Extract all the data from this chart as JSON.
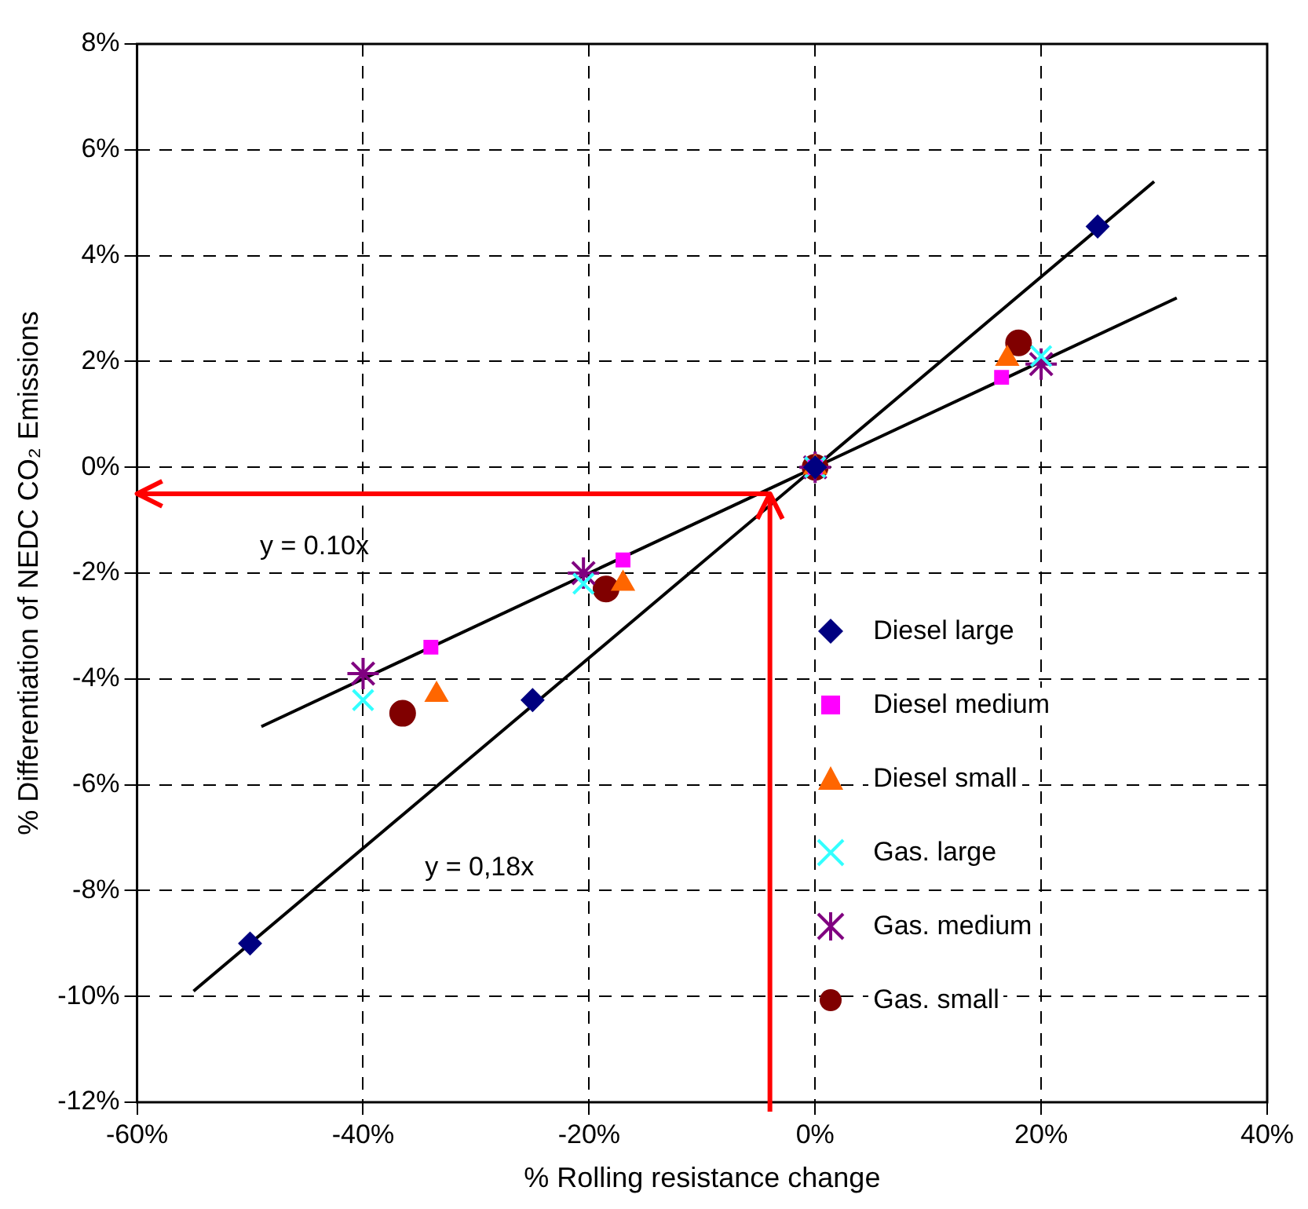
{
  "chart_data": {
    "type": "scatter",
    "xlabel": "% Rolling resistance change",
    "ylabel": "% Differentiation of NEDC CO₂ Emissions",
    "xlim": [
      -60,
      40
    ],
    "xticks": [
      {
        "value": -60,
        "label": "-60%"
      },
      {
        "value": -40,
        "label": "-40%"
      },
      {
        "value": -20,
        "label": "-20%"
      },
      {
        "value": 0,
        "label": "0%"
      },
      {
        "value": 20,
        "label": "20%"
      },
      {
        "value": 40,
        "label": "40%"
      }
    ],
    "ylim": [
      -12,
      8
    ],
    "yticks": [
      {
        "value": -12,
        "label": "-12%"
      },
      {
        "value": -10,
        "label": "-10%"
      },
      {
        "value": -8,
        "label": "-8%"
      },
      {
        "value": -6,
        "label": "-6%"
      },
      {
        "value": -4,
        "label": "-4%"
      },
      {
        "value": -2,
        "label": "-2%"
      },
      {
        "value": 0,
        "label": "0%"
      },
      {
        "value": 2,
        "label": "2%"
      },
      {
        "value": 4,
        "label": "4%"
      },
      {
        "value": 6,
        "label": "6%"
      },
      {
        "value": 8,
        "label": "8%"
      }
    ],
    "grid": true,
    "legend": "right",
    "series": [
      {
        "type": "line",
        "color": "#000000",
        "marker": "none",
        "x": [
          -55,
          30
        ],
        "values": [
          -9.9,
          5.4
        ]
      },
      {
        "type": "line",
        "color": "#000000",
        "marker": "none",
        "x": [
          -49,
          32
        ],
        "values": [
          -4.9,
          3.2
        ]
      },
      {
        "name": "Diesel large",
        "color": "#000080",
        "marker": "diamond",
        "x": [
          -50,
          -25,
          0,
          25
        ],
        "values": [
          -9.0,
          -4.4,
          0,
          4.55
        ]
      },
      {
        "name": "Diesel medium",
        "color": "#ff00ff",
        "marker": "square",
        "x": [
          -34,
          -17,
          0,
          16.5
        ],
        "values": [
          -3.4,
          -1.75,
          0,
          1.7
        ]
      },
      {
        "name": "Diesel small",
        "color": "#ff6600",
        "marker": "triangle",
        "x": [
          -33.5,
          -17,
          0,
          17
        ],
        "values": [
          -4.3,
          -2.2,
          0,
          2.05
        ]
      },
      {
        "name": "Gas. large",
        "color": "#33ffff",
        "marker": "cross",
        "x": [
          -40,
          -20.5,
          0,
          20
        ],
        "values": [
          -4.4,
          -2.2,
          0,
          2.1
        ]
      },
      {
        "name": "Gas. medium",
        "color": "#800080",
        "x": [
          -40,
          -20.5,
          0,
          20
        ],
        "values": [
          -3.9,
          -2.0,
          0,
          1.95
        ]
      },
      {
        "name": "Gas. small",
        "color": "#800000",
        "marker": "circle",
        "x": [
          -36.5,
          -18.5,
          0,
          18
        ],
        "values": [
          -4.65,
          -2.3,
          0,
          2.35
        ]
      }
    ],
    "annotations": [
      "y = 0.10x",
      "y = 0,18x"
    ],
    "ref_lines": [
      {
        "axis": "x",
        "value": -4,
        "color": "#ff0000"
      },
      {
        "axis": "y",
        "value": -0.5,
        "color": "#ff0000"
      }
    ]
  }
}
